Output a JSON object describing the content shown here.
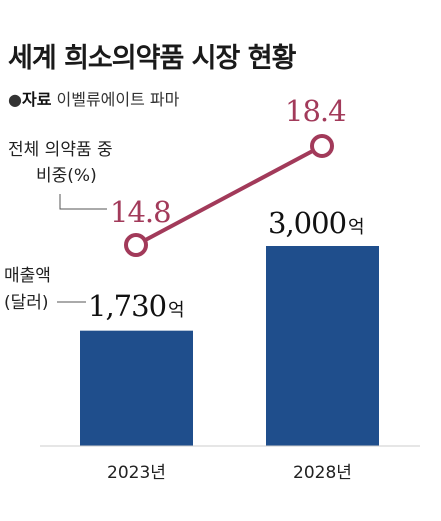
{
  "title": "세계 희소의약품 시장 현황",
  "source": {
    "bullet": "●",
    "label": "자료",
    "text": "이벨류에이트 파마"
  },
  "chart_data": {
    "type": "bar",
    "categories": [
      "2023년",
      "2028년"
    ],
    "series": [
      {
        "name": "매출액(달러)",
        "label_lines": [
          "매출액",
          "(달러)"
        ],
        "values": [
          1730,
          3000
        ],
        "value_labels": [
          "1,730",
          "3,000"
        ],
        "unit": "억",
        "color": "#1f4e8c"
      },
      {
        "name": "전체 의약품 중 비중(%)",
        "label_lines": [
          "전체 의약품 중",
          "비중(%)"
        ],
        "type": "line",
        "values": [
          14.8,
          18.4
        ],
        "value_labels": [
          "14.8",
          "18.4"
        ],
        "color": "#a23a5a"
      }
    ],
    "ylim": [
      0,
      3000
    ],
    "grid": false,
    "legend": "none"
  }
}
